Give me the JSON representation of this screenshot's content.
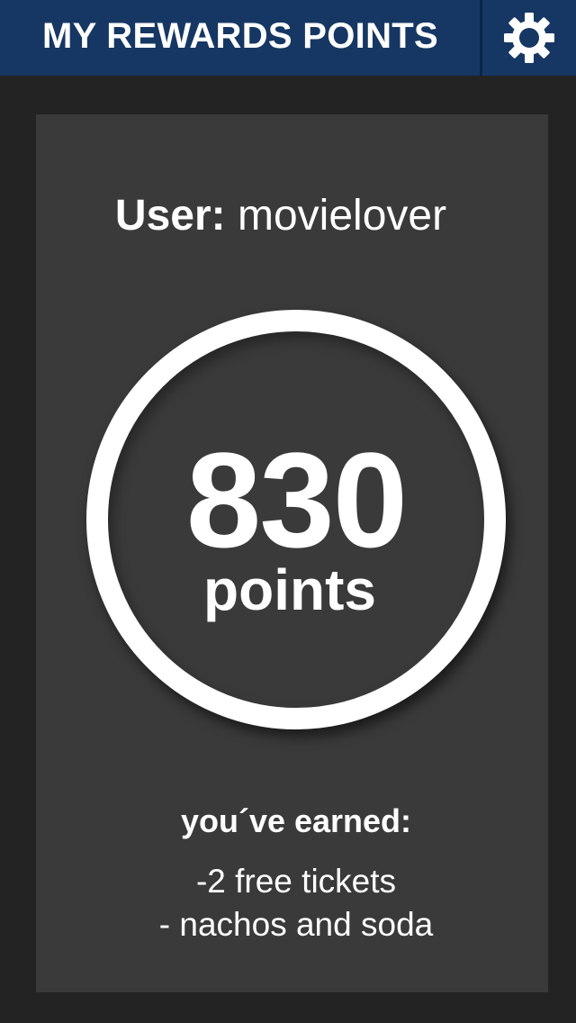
{
  "header": {
    "title": "MY REWARDS POINTS",
    "settings_icon": "gear-icon"
  },
  "user": {
    "label": "User:",
    "name": "movielover"
  },
  "points": {
    "value": "830",
    "unit": "points"
  },
  "earned": {
    "heading": "you´ve earned:",
    "items": [
      "-2 free tickets",
      "- nachos and soda"
    ]
  },
  "colors": {
    "header_bg": "#163763",
    "page_bg": "#232323",
    "card_bg": "#3a3a3a",
    "text": "#ffffff"
  }
}
